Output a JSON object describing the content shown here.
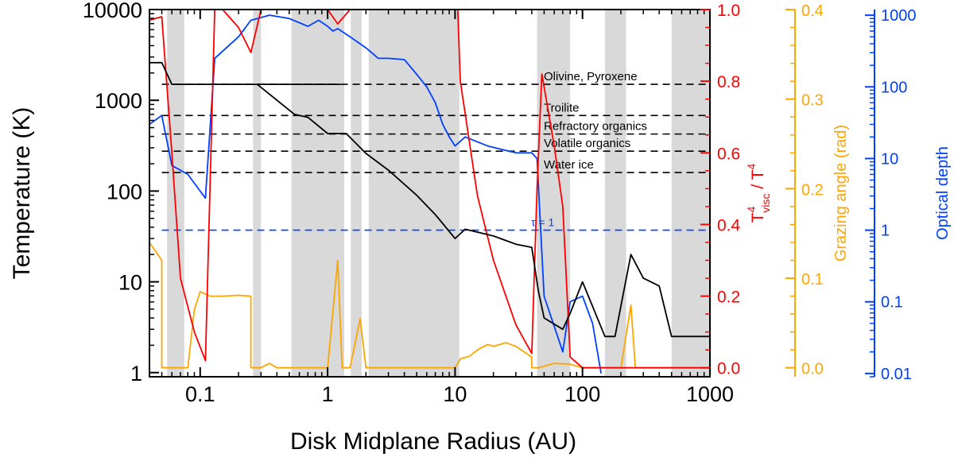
{
  "chart_data": {
    "type": "line",
    "xlabel": "Disk Midplane Radius (AU)",
    "ylabel_left": "Temperature (K)",
    "ylabel_right_red_main": "T",
    "ylabel_right_red_sup1": "4",
    "ylabel_right_red_sub": "visc",
    "ylabel_right_red_mid": " / T",
    "ylabel_right_red_sup2": "4",
    "ylabel_right_orange": "Grazing angle (rad)",
    "ylabel_right_blue": "Optical depth",
    "x_scale": "log",
    "xlim": [
      0.04,
      1000
    ],
    "x_ticks": [
      {
        "v": 0.1,
        "label": "0.1"
      },
      {
        "v": 1,
        "label": "1"
      },
      {
        "v": 10,
        "label": "10"
      },
      {
        "v": 100,
        "label": "100"
      },
      {
        "v": 1000,
        "label": "1000"
      }
    ],
    "ylim_temperature": [
      0.9,
      10000
    ],
    "y_ticks_temperature": [
      {
        "v": 1,
        "label": "1"
      },
      {
        "v": 10,
        "label": "10"
      },
      {
        "v": 100,
        "label": "100"
      },
      {
        "v": 1000,
        "label": "1000"
      },
      {
        "v": 10000,
        "label": "10000"
      }
    ],
    "ylim_ratio": [
      -0.025,
      1.0
    ],
    "y_ticks_ratio": [
      {
        "v": 0.0,
        "label": "0.0"
      },
      {
        "v": 0.2,
        "label": "0.2"
      },
      {
        "v": 0.4,
        "label": "0.4"
      },
      {
        "v": 0.6,
        "label": "0.6"
      },
      {
        "v": 0.8,
        "label": "0.8"
      },
      {
        "v": 1.0,
        "label": "1.0"
      }
    ],
    "ylim_grazing": [
      -0.01,
      0.4
    ],
    "y_ticks_grazing": [
      {
        "v": 0.0,
        "label": "0.0"
      },
      {
        "v": 0.1,
        "label": "0.1"
      },
      {
        "v": 0.2,
        "label": "0.2"
      },
      {
        "v": 0.3,
        "label": "0.3"
      },
      {
        "v": 0.4,
        "label": "0.4"
      }
    ],
    "ylim_optical": [
      0.009,
      1200
    ],
    "y_ticks_optical": [
      {
        "v": 0.01,
        "label": "0.01"
      },
      {
        "v": 0.1,
        "label": "0.1"
      },
      {
        "v": 1,
        "label": "1"
      },
      {
        "v": 10,
        "label": "10"
      },
      {
        "v": 100,
        "label": "100"
      },
      {
        "v": 1000,
        "label": "1000"
      }
    ],
    "colors": {
      "temperature": "#000000",
      "ratio": "#ff0000",
      "grazing": "#ffa500",
      "optical": "#0040ff",
      "shade": "#d9d9d9"
    },
    "shaded_regions": [
      [
        0.055,
        0.075
      ],
      [
        0.26,
        0.3
      ],
      [
        0.52,
        1.35
      ],
      [
        1.52,
        1.85
      ],
      [
        2.1,
        10.8
      ],
      [
        44,
        80
      ],
      [
        150,
        220
      ],
      [
        500,
        1000
      ]
    ],
    "condensation_lines": [
      {
        "label": "Olivine, Pyroxene",
        "T": 1500
      },
      {
        "label": "Troilite",
        "T": 680
      },
      {
        "label": "Refractory organics",
        "T": 425
      },
      {
        "label": "Volatile organics",
        "T": 275
      },
      {
        "label": "Water ice",
        "T": 160
      }
    ],
    "tau_line": {
      "label": "τ = 1",
      "value": 1
    },
    "series": [
      {
        "key": "temperature",
        "axis": "temperature",
        "x": [
          0.04,
          0.05,
          0.06,
          1.25,
          0.06,
          0.28,
          0.55,
          0.7,
          1.0,
          1.4,
          2.0,
          3.0,
          5.0,
          7.0,
          10,
          12,
          20,
          30,
          40,
          45,
          50,
          70,
          80,
          100,
          150,
          180,
          240,
          300,
          400,
          500,
          1000
        ],
        "y": [
          2600,
          2600,
          1500,
          1500,
          1500,
          1500,
          700,
          650,
          430,
          430,
          260,
          170,
          90,
          55,
          30,
          38,
          32,
          26,
          24,
          8,
          4,
          3,
          4.5,
          10,
          2.5,
          2.5,
          20,
          11,
          9,
          2.5,
          2.5
        ]
      },
      {
        "key": "ratio",
        "axis": "ratio",
        "x": [
          0.04,
          0.05,
          0.06,
          0.07,
          0.09,
          0.11,
          0.13,
          0.15,
          0.2,
          0.25,
          0.3,
          0.4,
          1.0,
          1.2,
          1.5,
          10.5,
          11,
          15,
          20,
          30,
          40,
          44,
          48,
          60,
          70,
          80,
          100,
          120,
          200,
          1000
        ],
        "y": [
          0.97,
          0.98,
          0.6,
          0.25,
          0.1,
          0.02,
          1.0,
          1.0,
          0.95,
          0.88,
          1.0,
          1.0,
          1.0,
          0.96,
          1.0,
          1.0,
          0.8,
          0.48,
          0.3,
          0.12,
          0.04,
          0.5,
          0.82,
          0.62,
          0.45,
          0.03,
          0.0,
          0.0,
          0.0,
          0.0
        ]
      },
      {
        "key": "grazing",
        "axis": "grazing",
        "x": [
          0.04,
          0.05,
          0.05,
          0.06,
          0.07,
          0.08,
          0.09,
          0.1,
          0.12,
          0.15,
          0.2,
          0.25,
          0.25,
          0.3,
          0.35,
          0.4,
          0.5,
          1.0,
          1.2,
          1.3,
          1.3,
          1.5,
          1.5,
          1.8,
          2.0,
          2.0,
          8.0,
          10,
          11,
          13,
          15,
          18,
          20,
          25,
          30,
          40,
          40,
          45,
          60,
          80,
          100,
          110,
          130,
          200,
          240,
          260,
          300,
          1000
        ],
        "y": [
          0.14,
          0.12,
          0.0,
          0.0,
          0.0,
          0.0,
          0.065,
          0.085,
          0.08,
          0.08,
          0.081,
          0.08,
          0.0,
          0.0,
          0.005,
          0.0,
          0.0,
          0.0,
          0.12,
          0.0,
          0.0,
          0.0,
          0.0,
          0.055,
          0.0,
          0.0,
          0.0,
          0.0,
          0.01,
          0.013,
          0.02,
          0.026,
          0.024,
          0.028,
          0.024,
          0.012,
          0.0,
          0.0,
          0.005,
          0.004,
          0.0,
          0.0,
          0.0,
          0.0,
          0.07,
          0.0,
          0.0,
          0.0
        ]
      },
      {
        "key": "optical",
        "axis": "optical",
        "x": [
          0.04,
          0.05,
          0.06,
          0.08,
          0.1,
          0.11,
          0.13,
          0.2,
          0.25,
          0.35,
          0.5,
          0.7,
          0.85,
          1.0,
          1.1,
          1.2,
          1.5,
          2.0,
          2.5,
          3.0,
          4.0,
          5.0,
          6.0,
          7.0,
          8.0,
          9.0,
          10,
          12,
          18,
          30,
          40,
          44,
          50,
          70,
          80,
          100,
          120,
          140
        ],
        "y": [
          30,
          40,
          8,
          6,
          3.5,
          2.8,
          250,
          500,
          850,
          1000,
          900,
          700,
          850,
          700,
          600,
          650,
          500,
          350,
          250,
          250,
          240,
          150,
          100,
          60,
          30,
          20,
          15,
          20,
          15,
          12,
          12,
          10,
          0.12,
          0.02,
          0.1,
          0.12,
          0.05,
          0.01
        ]
      }
    ]
  }
}
